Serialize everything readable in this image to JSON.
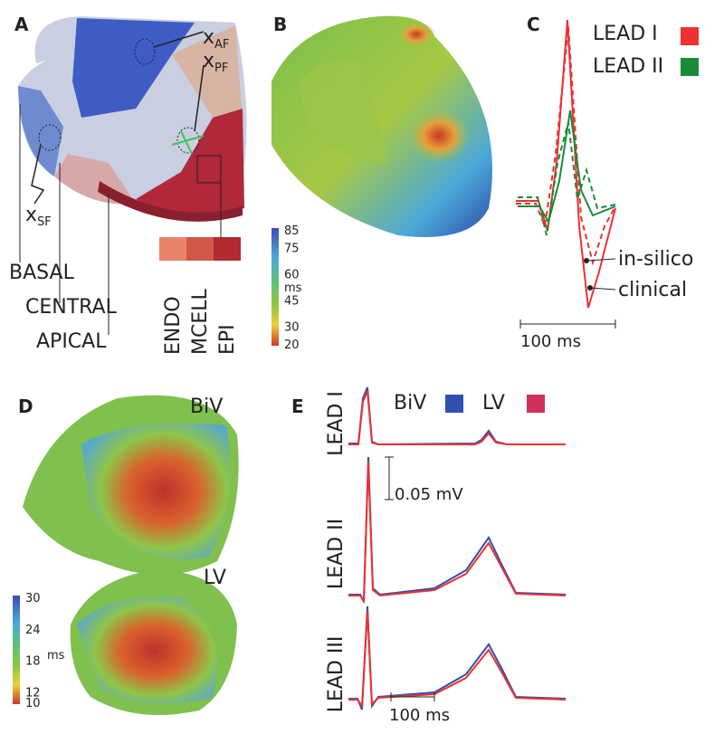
{
  "panels": {
    "a": {
      "label": "A",
      "points": [
        {
          "base": "x",
          "sub": "AF"
        },
        {
          "base": "x",
          "sub": "PF"
        },
        {
          "base": "x",
          "sub": "SF"
        }
      ],
      "regions": [
        "BASAL",
        "CENTRAL",
        "APICAL"
      ],
      "layers": [
        "ENDO",
        "MCELL",
        "EPI"
      ]
    },
    "b": {
      "label": "B",
      "colorbar_ticks": [
        85,
        75,
        60,
        45,
        30,
        20
      ],
      "unit": "ms"
    },
    "c": {
      "label": "C",
      "legend": [
        "LEAD I",
        "LEAD II"
      ],
      "line_styles": [
        "in-silico",
        "clinical"
      ],
      "scale_bar": "100 ms"
    },
    "d": {
      "label": "D",
      "models": [
        "BiV",
        "LV"
      ],
      "colorbar_ticks": [
        30,
        24,
        18,
        12,
        10
      ],
      "unit": "ms"
    },
    "e": {
      "label": "E",
      "legend": [
        "BiV",
        "LV"
      ],
      "leads": [
        "LEAD I",
        "LEAD II",
        "LEAD III"
      ],
      "amplitude_bar": "0.05 mV",
      "time_bar": "100 ms"
    }
  }
}
